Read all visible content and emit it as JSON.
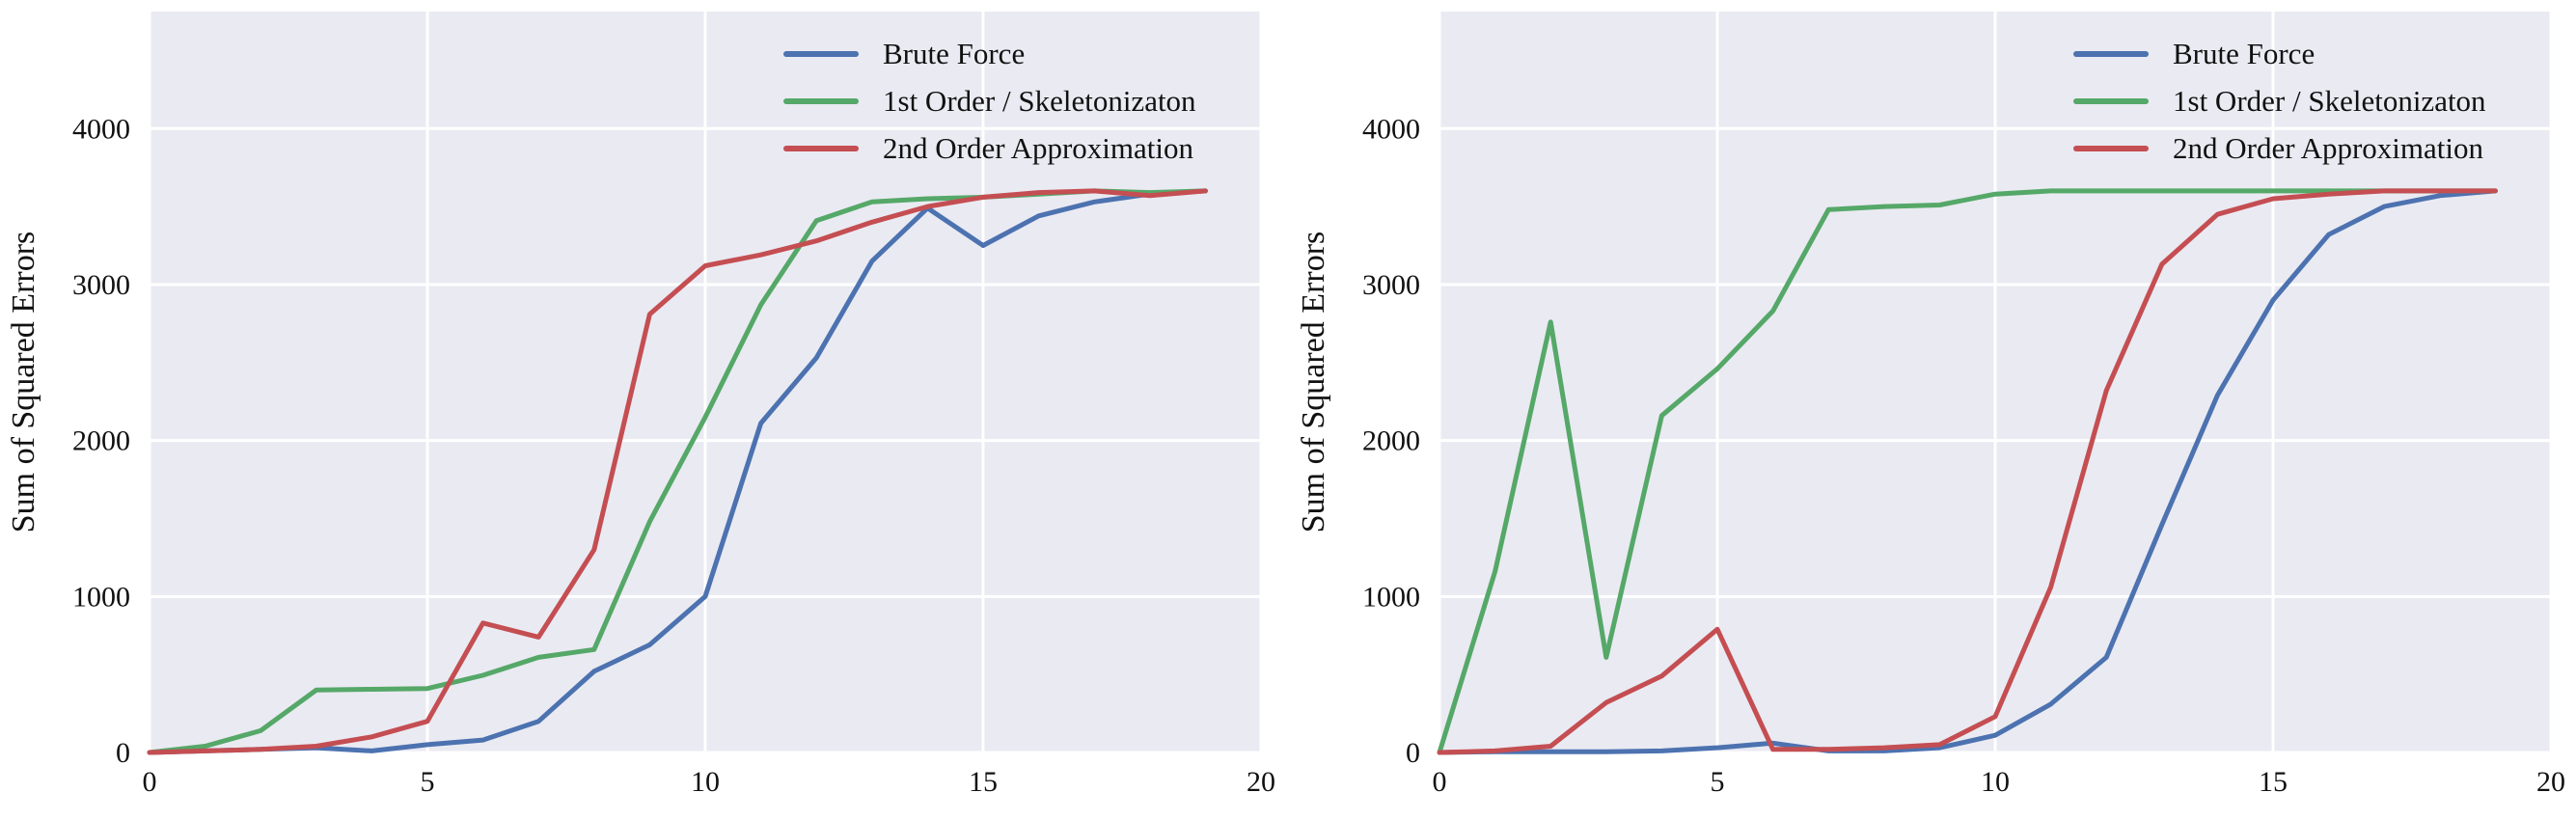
{
  "chart_data": [
    {
      "type": "line",
      "title": "",
      "xlabel": "",
      "ylabel": "Sum of Squared Errors",
      "xlim": [
        0,
        20
      ],
      "ylim": [
        0,
        4750
      ],
      "xticks": [
        0,
        5,
        10,
        15,
        20
      ],
      "yticks": [
        0,
        1000,
        2000,
        3000,
        4000
      ],
      "grid": true,
      "legend": "top-right",
      "x": [
        0,
        1,
        2,
        3,
        4,
        5,
        6,
        7,
        8,
        9,
        10,
        11,
        12,
        13,
        14,
        15,
        16,
        17,
        18,
        19
      ],
      "series": [
        {
          "name": "Brute Force",
          "color": "#4c72b0",
          "values": [
            0,
            10,
            20,
            30,
            10,
            50,
            80,
            200,
            520,
            690,
            1000,
            2110,
            2530,
            3150,
            3490,
            3250,
            3440,
            3530,
            3580,
            3600
          ]
        },
        {
          "name": "1st Order / Skeletonizaton",
          "color": "#55a868",
          "values": [
            0,
            40,
            140,
            400,
            405,
            410,
            495,
            610,
            660,
            1480,
            2150,
            2870,
            3410,
            3530,
            3550,
            3560,
            3580,
            3600,
            3590,
            3600
          ]
        },
        {
          "name": "2nd Order Approximation",
          "color": "#c44e52",
          "values": [
            0,
            10,
            20,
            40,
            100,
            200,
            830,
            740,
            1300,
            2810,
            3120,
            3190,
            3280,
            3400,
            3500,
            3560,
            3590,
            3600,
            3570,
            3600
          ]
        }
      ]
    },
    {
      "type": "line",
      "title": "",
      "xlabel": "",
      "ylabel": "Sum of Squared Errors",
      "xlim": [
        0,
        20
      ],
      "ylim": [
        0,
        4750
      ],
      "xticks": [
        0,
        5,
        10,
        15,
        20
      ],
      "yticks": [
        0,
        1000,
        2000,
        3000,
        4000
      ],
      "grid": true,
      "legend": "top-right",
      "x": [
        0,
        1,
        2,
        3,
        4,
        5,
        6,
        7,
        8,
        9,
        10,
        11,
        12,
        13,
        14,
        15,
        16,
        17,
        18,
        19
      ],
      "series": [
        {
          "name": "Brute Force",
          "color": "#4c72b0",
          "values": [
            0,
            5,
            5,
            5,
            10,
            30,
            60,
            10,
            10,
            30,
            110,
            310,
            610,
            1460,
            2290,
            2900,
            3320,
            3500,
            3570,
            3600
          ]
        },
        {
          "name": "1st Order / Skeletonizaton",
          "color": "#55a868",
          "values": [
            0,
            1160,
            2760,
            610,
            2160,
            2460,
            2830,
            3480,
            3500,
            3510,
            3580,
            3600,
            3600,
            3600,
            3600,
            3600,
            3600,
            3600,
            3600,
            3600
          ]
        },
        {
          "name": "2nd Order Approximation",
          "color": "#c44e52",
          "values": [
            0,
            10,
            40,
            320,
            490,
            790,
            20,
            20,
            30,
            50,
            230,
            1060,
            2320,
            3130,
            3450,
            3550,
            3580,
            3600,
            3600,
            3600
          ]
        }
      ]
    }
  ]
}
